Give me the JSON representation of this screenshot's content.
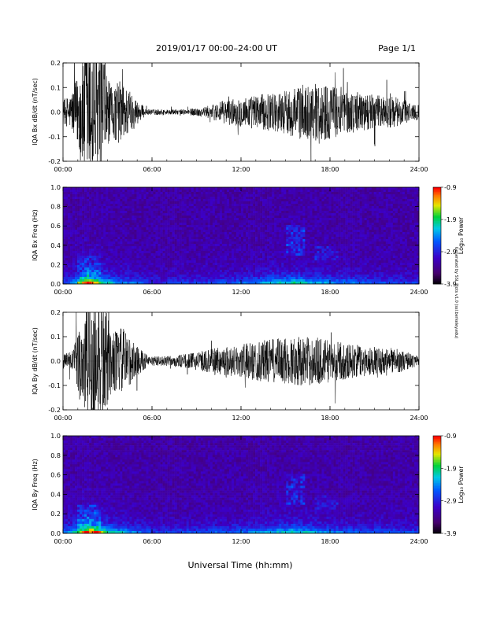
{
  "header": {
    "title": "2019/01/17  00:00–24:00 UT",
    "page": "Page 1/1"
  },
  "side_note": "Generated by SSL Plots v1.0 (ssl.berkeley.edu)",
  "colors": {
    "trace": "#000000",
    "axis": "#000000",
    "background": "#ffffff"
  },
  "chart_data": [
    {
      "type": "line",
      "ylabel": "IQA Bx dB/dt (nT/sec)",
      "x_ticks": [
        "00:00",
        "06:00",
        "12:00",
        "18:00",
        "24:00"
      ],
      "y_ticks": [
        "0.2",
        "0.1",
        "0.0",
        "-0.1",
        "-0.2"
      ],
      "xlim": [
        0,
        24
      ],
      "ylim": [
        -0.2,
        0.2
      ],
      "activity_profile": [
        {
          "t": 0.0,
          "amp": 0.05
        },
        {
          "t": 0.5,
          "amp": 0.07
        },
        {
          "t": 1.0,
          "amp": 0.15
        },
        {
          "t": 1.5,
          "amp": 0.3
        },
        {
          "t": 2.5,
          "amp": 0.3
        },
        {
          "t": 3.2,
          "amp": 0.1
        },
        {
          "t": 3.8,
          "amp": 0.13
        },
        {
          "t": 4.4,
          "amp": 0.1
        },
        {
          "t": 5.0,
          "amp": 0.05
        },
        {
          "t": 5.6,
          "amp": 0.012
        },
        {
          "t": 8.0,
          "amp": 0.01
        },
        {
          "t": 9.5,
          "amp": 0.02
        },
        {
          "t": 11.0,
          "amp": 0.05
        },
        {
          "t": 13.0,
          "amp": 0.07
        },
        {
          "t": 14.5,
          "amp": 0.08
        },
        {
          "t": 16.0,
          "amp": 0.11
        },
        {
          "t": 17.5,
          "amp": 0.12
        },
        {
          "t": 19.0,
          "amp": 0.09
        },
        {
          "t": 21.0,
          "amp": 0.07
        },
        {
          "t": 22.5,
          "amp": 0.06
        },
        {
          "t": 24.0,
          "amp": 0.03
        }
      ]
    },
    {
      "type": "heatmap",
      "ylabel": "IQA Bx Freq (Hz)",
      "x_ticks": [
        "00:00",
        "06:00",
        "12:00",
        "18:00",
        "24:00"
      ],
      "y_ticks": [
        "1.0",
        "0.8",
        "0.6",
        "0.4",
        "0.2",
        "0.0"
      ],
      "xlim": [
        0,
        24
      ],
      "ylim": [
        0,
        1.0
      ],
      "colorbar": {
        "label": "Log₁₀ Power",
        "ticks": [
          "-0.9",
          "-1.9",
          "-2.9",
          "-3.9"
        ],
        "range": [
          -3.9,
          -0.9
        ]
      },
      "power_profile": [
        {
          "t": 0.0,
          "level": 0.2
        },
        {
          "t": 1.0,
          "level": 0.5
        },
        {
          "t": 1.6,
          "level": 0.9
        },
        {
          "t": 2.4,
          "level": 0.7
        },
        {
          "t": 3.5,
          "level": 0.4
        },
        {
          "t": 5.0,
          "level": 0.3
        },
        {
          "t": 6.0,
          "level": 0.18
        },
        {
          "t": 9.0,
          "level": 0.22
        },
        {
          "t": 12.0,
          "level": 0.3
        },
        {
          "t": 14.0,
          "level": 0.45
        },
        {
          "t": 15.5,
          "level": 0.55
        },
        {
          "t": 17.0,
          "level": 0.45
        },
        {
          "t": 19.0,
          "level": 0.35
        },
        {
          "t": 21.0,
          "level": 0.28
        },
        {
          "t": 24.0,
          "level": 0.2
        }
      ]
    },
    {
      "type": "line",
      "ylabel": "IQA By dB/dt (nT/sec)",
      "x_ticks": [
        "00:00",
        "06:00",
        "12:00",
        "18:00",
        "24:00"
      ],
      "y_ticks": [
        "0.2",
        "0.1",
        "0.0",
        "-0.1",
        "-0.2"
      ],
      "xlim": [
        0,
        24
      ],
      "ylim": [
        -0.2,
        0.2
      ],
      "activity_profile": [
        {
          "t": 0.0,
          "amp": 0.03
        },
        {
          "t": 0.7,
          "amp": 0.05
        },
        {
          "t": 1.2,
          "amp": 0.18
        },
        {
          "t": 1.7,
          "amp": 0.3
        },
        {
          "t": 2.6,
          "amp": 0.28
        },
        {
          "t": 3.3,
          "amp": 0.12
        },
        {
          "t": 4.0,
          "amp": 0.14
        },
        {
          "t": 5.0,
          "amp": 0.06
        },
        {
          "t": 5.8,
          "amp": 0.02
        },
        {
          "t": 7.0,
          "amp": 0.02
        },
        {
          "t": 8.5,
          "amp": 0.03
        },
        {
          "t": 10.0,
          "amp": 0.05
        },
        {
          "t": 12.0,
          "amp": 0.07
        },
        {
          "t": 14.0,
          "amp": 0.09
        },
        {
          "t": 15.5,
          "amp": 0.1
        },
        {
          "t": 17.0,
          "amp": 0.1
        },
        {
          "t": 18.5,
          "amp": 0.08
        },
        {
          "t": 20.5,
          "amp": 0.06
        },
        {
          "t": 22.5,
          "amp": 0.05
        },
        {
          "t": 24.0,
          "amp": 0.02
        }
      ]
    },
    {
      "type": "heatmap",
      "ylabel": "IQA By Freq (Hz)",
      "x_ticks": [
        "00:00",
        "06:00",
        "12:00",
        "18:00",
        "24:00"
      ],
      "y_ticks": [
        "1.0",
        "0.8",
        "0.6",
        "0.4",
        "0.2",
        "0.0"
      ],
      "xlim": [
        0,
        24
      ],
      "ylim": [
        0,
        1.0
      ],
      "colorbar": {
        "label": "Log₁₀ Power",
        "ticks": [
          "-0.9",
          "-1.9",
          "-2.9",
          "-3.9"
        ],
        "range": [
          -3.9,
          -0.9
        ]
      },
      "power_profile": [
        {
          "t": 0.0,
          "level": 0.3
        },
        {
          "t": 1.0,
          "level": 0.6
        },
        {
          "t": 1.6,
          "level": 0.95
        },
        {
          "t": 2.4,
          "level": 0.8
        },
        {
          "t": 3.5,
          "level": 0.5
        },
        {
          "t": 5.0,
          "level": 0.35
        },
        {
          "t": 6.0,
          "level": 0.22
        },
        {
          "t": 9.0,
          "level": 0.25
        },
        {
          "t": 12.0,
          "level": 0.32
        },
        {
          "t": 14.0,
          "level": 0.42
        },
        {
          "t": 15.5,
          "level": 0.55
        },
        {
          "t": 17.0,
          "level": 0.42
        },
        {
          "t": 19.0,
          "level": 0.32
        },
        {
          "t": 21.0,
          "level": 0.28
        },
        {
          "t": 24.0,
          "level": 0.22
        }
      ]
    }
  ],
  "xaxis_title": "Universal Time (hh:mm)"
}
